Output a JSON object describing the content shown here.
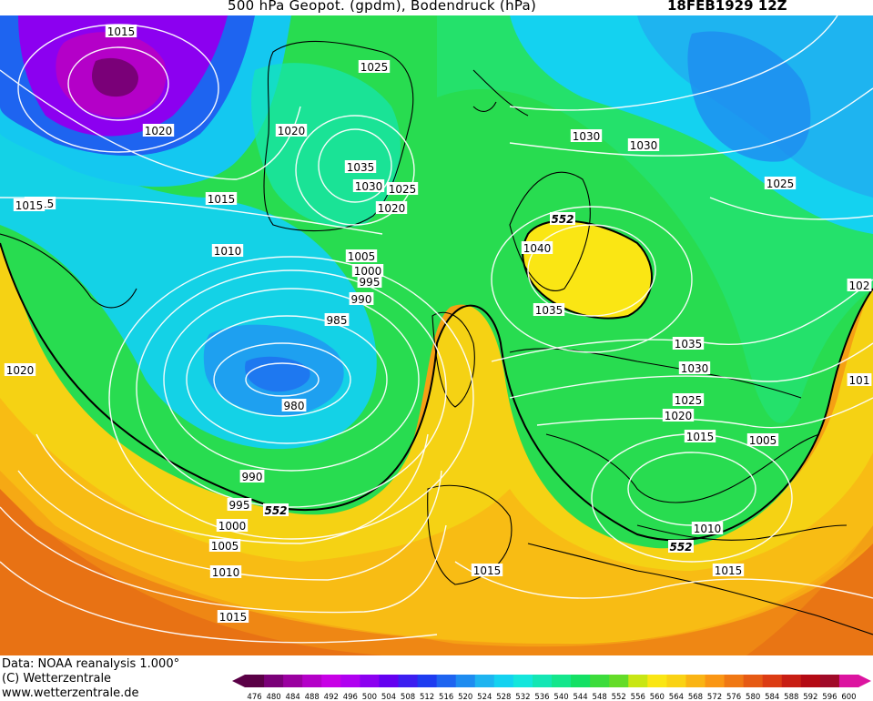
{
  "title": {
    "main": "500 hPa Geopot. (gpdm), Bodendruck (hPa)",
    "date": "18FEB1929 12Z"
  },
  "credits": {
    "data": "Data: NOAA reanalysis 1.000°",
    "copyright": "(C) Wetterzentrale",
    "url": "www.wetterzentrale.de"
  },
  "legend": {
    "ticks": [
      "476",
      "480",
      "484",
      "488",
      "492",
      "496",
      "500",
      "504",
      "508",
      "512",
      "516",
      "520",
      "524",
      "528",
      "532",
      "536",
      "540",
      "544",
      "548",
      "552",
      "556",
      "560",
      "564",
      "568",
      "572",
      "576",
      "580",
      "584",
      "588",
      "592",
      "596",
      "600"
    ],
    "colors": [
      "#5a0046",
      "#7a0078",
      "#9a00a0",
      "#b400c8",
      "#c800e6",
      "#b000f0",
      "#8c00f0",
      "#6400f0",
      "#3c1ef0",
      "#1e3cf0",
      "#1e64f0",
      "#1e8cf0",
      "#1eb4f0",
      "#14d2f0",
      "#14e6dc",
      "#14e6b4",
      "#14e68c",
      "#14e064",
      "#3cdc3c",
      "#64dc28",
      "#c8e614",
      "#fae614",
      "#fad214",
      "#fab414",
      "#fa9614",
      "#f07814",
      "#e65a14",
      "#dc3c14",
      "#c81e14",
      "#b40a14",
      "#a00a28",
      "#dc14a0"
    ]
  },
  "map": {
    "pressure_labels": [
      "1015",
      "1020",
      "1015",
      "1025",
      "1020",
      "1035",
      "1030",
      "1025",
      "1020",
      "1015",
      "1010",
      "1005",
      "1000",
      "995",
      "990",
      "985",
      "980",
      "990",
      "995",
      "1000",
      "1005",
      "1010",
      "1015",
      "1020",
      "1030",
      "1030",
      "1025",
      "1040",
      "1035",
      "1035",
      "1030",
      "1025",
      "1020",
      "1015",
      "1005",
      "1010",
      "1015",
      "1015",
      "1015",
      "102",
      "101"
    ],
    "height_labels": [
      "552",
      "552",
      "552"
    ],
    "colors": {
      "deep_low": "#7a00c8",
      "mid_low": "#2864f0",
      "cyan": "#14d2f0",
      "green": "#1ee664",
      "bright_green": "#3cdc28",
      "yellow": "#fae614",
      "orange": "#f5a014",
      "dark_orange": "#e66414",
      "red": "#c83c14"
    }
  }
}
